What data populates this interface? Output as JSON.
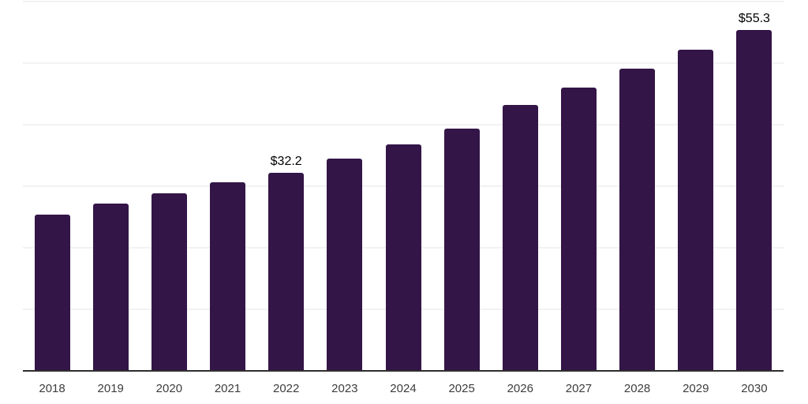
{
  "chart_data": {
    "type": "bar",
    "title": "",
    "xlabel": "",
    "ylabel": "",
    "categories": [
      "2018",
      "2019",
      "2020",
      "2021",
      "2022",
      "2023",
      "2024",
      "2025",
      "2026",
      "2027",
      "2028",
      "2029",
      "2030"
    ],
    "values": [
      25.4,
      27.1,
      28.8,
      30.6,
      32.2,
      34.5,
      36.8,
      39.3,
      43.1,
      46.0,
      49.1,
      52.1,
      55.3
    ],
    "point_labels": [
      "",
      "",
      "",
      "",
      "$32.2",
      "",
      "",
      "",
      "",
      "",
      "",
      "",
      "$55.3"
    ],
    "ylim": [
      0,
      60
    ],
    "gridline_step": 10,
    "grid": "horizontal",
    "legend": "none",
    "y_tick_labels_visible": false,
    "colors": {
      "bar": "#331547",
      "axis": "#2e2e2e",
      "gridline": "#f2f2f4",
      "tick_label": "#3d3d3d",
      "data_label": "#000000",
      "background": "#ffffff"
    }
  }
}
